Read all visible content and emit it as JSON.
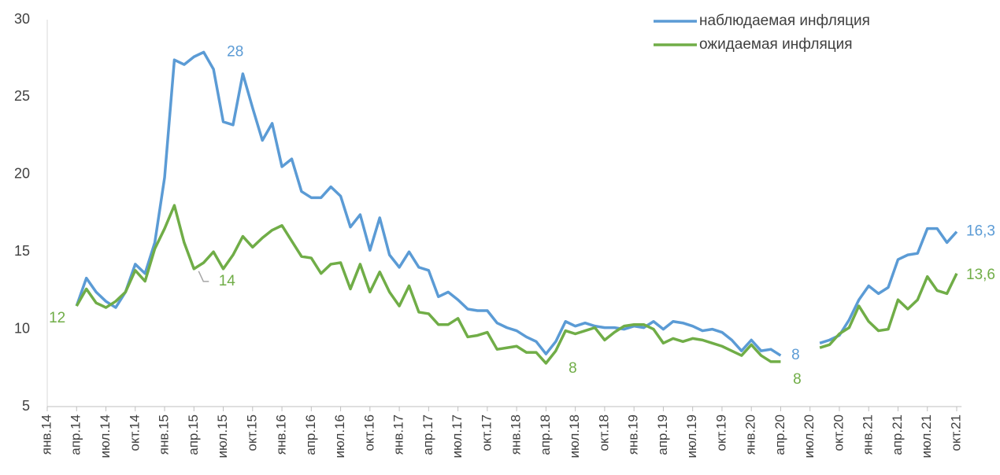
{
  "chart_data": {
    "type": "line",
    "categories": [
      "янв.14",
      null,
      null,
      "апр.14",
      null,
      null,
      "июл.14",
      null,
      null,
      "окт.14",
      null,
      null,
      "янв.15",
      null,
      null,
      "апр.15",
      null,
      null,
      "июл.15",
      null,
      null,
      "окт.15",
      null,
      null,
      "янв.16",
      null,
      null,
      "апр.16",
      null,
      null,
      "июл.16",
      null,
      null,
      "окт.16",
      null,
      null,
      "янв.17",
      null,
      null,
      "апр.17",
      null,
      null,
      "июл.17",
      null,
      null,
      "окт.17",
      null,
      null,
      "янв.18",
      null,
      null,
      "апр.18",
      null,
      null,
      "июл.18",
      null,
      null,
      "окт.18",
      null,
      null,
      "янв.19",
      null,
      null,
      "апр.19",
      null,
      null,
      "июл.19",
      null,
      null,
      "окт.19",
      null,
      null,
      "янв.20",
      null,
      null,
      "апр.20",
      null,
      null,
      "июл.20",
      null,
      null,
      "окт.20",
      null,
      null,
      "янв.21",
      null,
      null,
      "апр.21",
      null,
      null,
      "июл.21",
      null,
      null,
      "окт.21"
    ],
    "series": [
      {
        "name": "наблюдаемая инфляция",
        "color": "#5b9bd5",
        "values": [
          null,
          null,
          null,
          11.5,
          13.3,
          12.4,
          11.8,
          11.4,
          12.4,
          14.2,
          13.6,
          15.6,
          19.8,
          27.4,
          27.1,
          27.6,
          27.9,
          26.8,
          23.4,
          23.2,
          26.5,
          24.3,
          22.2,
          23.3,
          20.5,
          21.0,
          18.9,
          18.5,
          18.5,
          19.2,
          18.6,
          16.6,
          17.4,
          15.1,
          17.2,
          14.8,
          14.0,
          15.0,
          14.0,
          13.8,
          12.1,
          12.4,
          11.9,
          11.3,
          11.2,
          11.2,
          10.4,
          10.1,
          9.9,
          9.5,
          9.2,
          8.4,
          9.2,
          10.5,
          10.2,
          10.4,
          10.2,
          10.1,
          10.1,
          10.0,
          10.2,
          10.1,
          10.5,
          10.0,
          10.5,
          10.4,
          10.2,
          9.9,
          10.0,
          9.8,
          9.3,
          8.6,
          9.3,
          8.6,
          8.7,
          8.3,
          null,
          null,
          null,
          9.1,
          9.3,
          9.6,
          10.6,
          11.9,
          12.8,
          12.3,
          12.7,
          14.5,
          14.8,
          14.9,
          16.5,
          16.5,
          15.6,
          16.3
        ],
        "value_labels": [
          null,
          null,
          null,
          null,
          null,
          null,
          null,
          null,
          null,
          null,
          null,
          null,
          null,
          null,
          null,
          null,
          "28",
          null,
          null,
          null,
          null,
          null,
          null,
          null,
          null,
          null,
          null,
          null,
          null,
          null,
          null,
          null,
          null,
          null,
          null,
          null,
          null,
          null,
          null,
          null,
          null,
          null,
          null,
          null,
          null,
          null,
          null,
          null,
          null,
          null,
          null,
          null,
          null,
          null,
          null,
          null,
          null,
          null,
          null,
          null,
          null,
          null,
          null,
          null,
          null,
          null,
          null,
          null,
          null,
          null,
          null,
          null,
          null,
          null,
          null,
          "8",
          null,
          null,
          null,
          null,
          null,
          null,
          null,
          null,
          null,
          null,
          null,
          null,
          null,
          null,
          null,
          null,
          null,
          "16,3"
        ]
      },
      {
        "name": "ожидаемая инфляция",
        "color": "#70ad47",
        "values": [
          null,
          null,
          null,
          11.5,
          12.6,
          11.7,
          11.4,
          11.8,
          12.4,
          13.8,
          13.1,
          15.2,
          16.5,
          18.0,
          15.6,
          13.9,
          14.3,
          15.0,
          13.9,
          14.8,
          16.0,
          15.3,
          15.9,
          16.4,
          16.7,
          15.7,
          14.7,
          14.6,
          13.6,
          14.2,
          14.3,
          12.6,
          14.2,
          12.4,
          13.7,
          12.4,
          11.5,
          12.8,
          11.1,
          11.0,
          10.3,
          10.3,
          10.7,
          9.5,
          9.6,
          9.8,
          8.7,
          8.8,
          8.9,
          8.5,
          8.5,
          7.8,
          8.6,
          9.9,
          9.7,
          9.9,
          10.1,
          9.3,
          9.8,
          10.2,
          10.3,
          10.3,
          10.0,
          9.1,
          9.4,
          9.2,
          9.4,
          9.3,
          9.1,
          8.9,
          8.6,
          8.3,
          9.0,
          8.3,
          7.9,
          7.9,
          null,
          null,
          null,
          8.8,
          9.0,
          9.7,
          10.1,
          11.5,
          10.5,
          9.9,
          10.0,
          11.9,
          11.3,
          11.9,
          13.4,
          12.5,
          12.3,
          13.6
        ],
        "value_labels": [
          null,
          null,
          null,
          "12",
          null,
          null,
          null,
          null,
          null,
          null,
          null,
          null,
          null,
          null,
          null,
          "14",
          null,
          null,
          null,
          null,
          null,
          null,
          null,
          null,
          null,
          null,
          null,
          null,
          null,
          null,
          null,
          null,
          null,
          null,
          null,
          null,
          null,
          null,
          null,
          null,
          null,
          null,
          null,
          null,
          null,
          null,
          null,
          null,
          null,
          null,
          null,
          "8",
          null,
          null,
          null,
          null,
          null,
          null,
          null,
          null,
          null,
          null,
          null,
          null,
          null,
          null,
          null,
          null,
          null,
          null,
          null,
          null,
          null,
          null,
          null,
          "8",
          null,
          null,
          null,
          null,
          null,
          null,
          null,
          null,
          null,
          null,
          null,
          null,
          null,
          null,
          null,
          null,
          null,
          "13,6"
        ]
      }
    ],
    "ylim": [
      5,
      30
    ],
    "yticks": [
      5,
      10,
      15,
      20,
      25,
      30
    ],
    "grid": false,
    "legend": "top-right"
  }
}
